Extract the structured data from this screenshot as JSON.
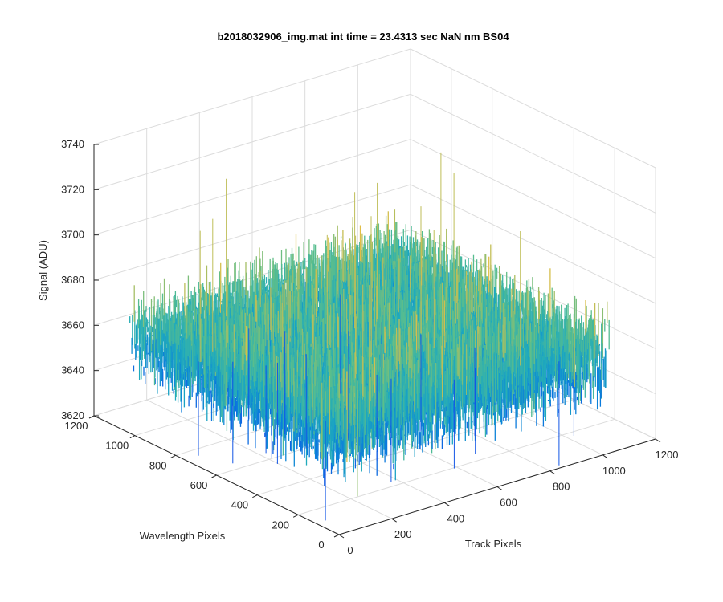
{
  "chart_data": {
    "type": "surface",
    "title": "b2018032906_img.mat int time = 23.4313 sec  NaN nm BS04",
    "xlabel": "Track Pixels",
    "ylabel": "Wavelength Pixels",
    "zlabel": "Signal (ADU)",
    "xlim": [
      0,
      1200
    ],
    "ylim": [
      0,
      1200
    ],
    "zlim": [
      3620,
      3740
    ],
    "xticks": [
      "0",
      "200",
      "400",
      "600",
      "800",
      "1000",
      "1200"
    ],
    "yticks": [
      "0",
      "200",
      "400",
      "600",
      "800",
      "1000",
      "1200"
    ],
    "zticks": [
      "3620",
      "3640",
      "3660",
      "3680",
      "3700",
      "3720",
      "3740"
    ],
    "data_extent": {
      "x": [
        0,
        1024
      ],
      "y": [
        0,
        1024
      ]
    },
    "signal_mean": 3662,
    "signal_range_typical": [
      3640,
      3690
    ],
    "signal_peak_extremes": [
      3612,
      3725
    ],
    "grid": true,
    "colormap": "parula",
    "colors": {
      "low": "#0a5fe0",
      "mid": "#22a5c8",
      "high": "#dfc04a"
    }
  }
}
